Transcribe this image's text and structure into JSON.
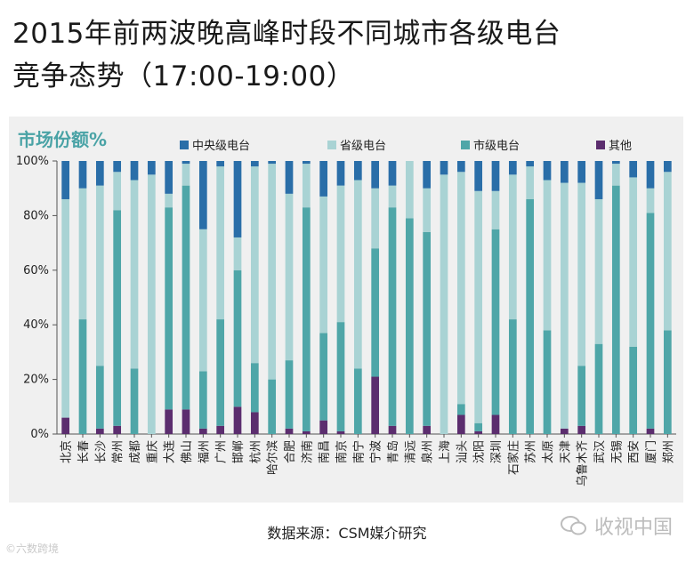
{
  "title": {
    "line1": "2015年前两波晚高峰时段不同城市各级电台",
    "line2": "竞争态势（17:00-19:00）"
  },
  "panel_label": "市场份额%",
  "source": "数据来源：CSM媒介研究",
  "watermark_left": "©六数跨境",
  "watermark_right": "收视中国",
  "colors": {
    "central": "#2a6ea8",
    "provincial": "#a9d3d4",
    "municipal": "#4fa6a8",
    "other": "#5b2d6e"
  },
  "chart_data": {
    "type": "bar",
    "stacked": true,
    "categories": [
      "北京",
      "长春",
      "长沙",
      "常州",
      "成都",
      "重庆",
      "大连",
      "佛山",
      "福州",
      "广州",
      "邯郸",
      "杭州",
      "哈尔滨",
      "合肥",
      "济南",
      "南昌",
      "南京",
      "南宁",
      "宁波",
      "青岛",
      "清远",
      "泉州",
      "上海",
      "汕头",
      "沈阳",
      "深圳",
      "石家庄",
      "苏州",
      "太原",
      "天津",
      "乌鲁木齐",
      "武汉",
      "无锡",
      "西安",
      "厦门",
      "郑州"
    ],
    "series": [
      {
        "name": "其他",
        "color": "#5b2d6e",
        "values": [
          6,
          0,
          2,
          3,
          0,
          0,
          9,
          9,
          2,
          3,
          10,
          8,
          0,
          2,
          1,
          5,
          1,
          0,
          21,
          3,
          0,
          3,
          0,
          7,
          1,
          7,
          0,
          0,
          0,
          2,
          3,
          0,
          0,
          0,
          2,
          0
        ]
      },
      {
        "name": "市级电台",
        "color": "#4fa6a8",
        "values": [
          0,
          42,
          23,
          79,
          24,
          0,
          74,
          82,
          21,
          39,
          50,
          18,
          20,
          25,
          82,
          32,
          40,
          24,
          47,
          80,
          79,
          71,
          0,
          4,
          3,
          68,
          42,
          86,
          38,
          0,
          22,
          33,
          91,
          32,
          79,
          38
        ]
      },
      {
        "name": "省级电台",
        "color": "#a9d3d4",
        "values": [
          80,
          48,
          66,
          14,
          69,
          95,
          5,
          8,
          52,
          56,
          12,
          72,
          79,
          61,
          16,
          50,
          50,
          69,
          22,
          8,
          21,
          16,
          95,
          85,
          85,
          14,
          53,
          12,
          55,
          90,
          67,
          53,
          8,
          62,
          9,
          58
        ]
      },
      {
        "name": "中央级电台",
        "color": "#2a6ea8",
        "values": [
          14,
          10,
          9,
          4,
          7,
          5,
          12,
          1,
          25,
          2,
          28,
          2,
          1,
          12,
          1,
          13,
          9,
          7,
          10,
          9,
          0,
          10,
          5,
          4,
          11,
          11,
          5,
          2,
          7,
          8,
          8,
          14,
          1,
          6,
          10,
          4
        ]
      }
    ],
    "legend": [
      "中央级电台",
      "省级电台",
      "市级电台",
      "其他"
    ],
    "y_ticks": [
      "0%",
      "20%",
      "40%",
      "60%",
      "80%",
      "100%"
    ],
    "ylim": [
      0,
      100
    ]
  }
}
